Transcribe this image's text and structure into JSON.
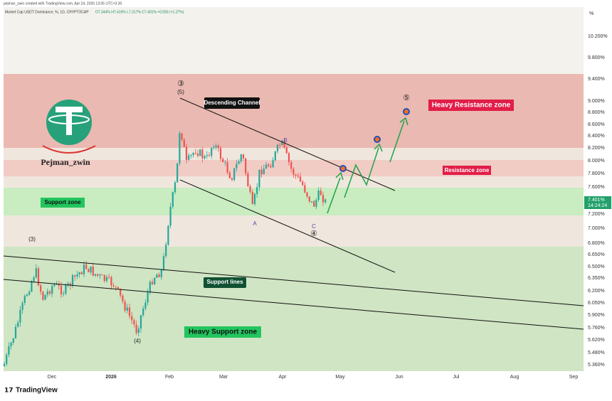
{
  "header": {
    "credit": "pejman_zwin created with TradingView.com, Apr 24, 2026 13:05 UTC+3:30",
    "symbol": "Market Cap USDT Dominance, %, 1D, CRYPTOCAP",
    "ohlc": "O7.344% H7.416% L7.317% C7.401% +0.093 (+1.27%)"
  },
  "price_axis": {
    "unit": "%",
    "labels": [
      "10.200%",
      "9.800%",
      "9.400%",
      "9.000%",
      "8.800%",
      "8.600%",
      "8.400%",
      "8.200%",
      "8.000%",
      "7.800%",
      "7.600%",
      "7.200%",
      "7.000%",
      "6.800%",
      "6.650%",
      "6.500%",
      "6.350%",
      "6.200%",
      "6.050%",
      "5.900%",
      "5.760%",
      "5.620%",
      "5.480%",
      "5.360%"
    ],
    "current": "7.401%",
    "countdown": "14:24:24"
  },
  "time_axis": {
    "labels": [
      "Dec",
      "2026",
      "Feb",
      "Mar",
      "Apr",
      "May",
      "Jun",
      "Jul",
      "Aug",
      "Sep"
    ]
  },
  "annotations": {
    "descending_channel": "Descending Channel",
    "heavy_resistance": "Heavy Resistance zone",
    "resistance": "Resistance zone",
    "support": "Support zone",
    "support_lines": "Support lines",
    "heavy_support": "Heavy Support zone",
    "logo_name": "Pejman_zwin"
  },
  "waves": {
    "w3_circle": "③",
    "w5": "(5)",
    "w3": "(3)",
    "w4": "(4)",
    "w5_circle": "⑤",
    "a": "A",
    "b": "B",
    "c": "C",
    "w4_circle": "④"
  },
  "footer": {
    "brand": "TradingView"
  }
}
